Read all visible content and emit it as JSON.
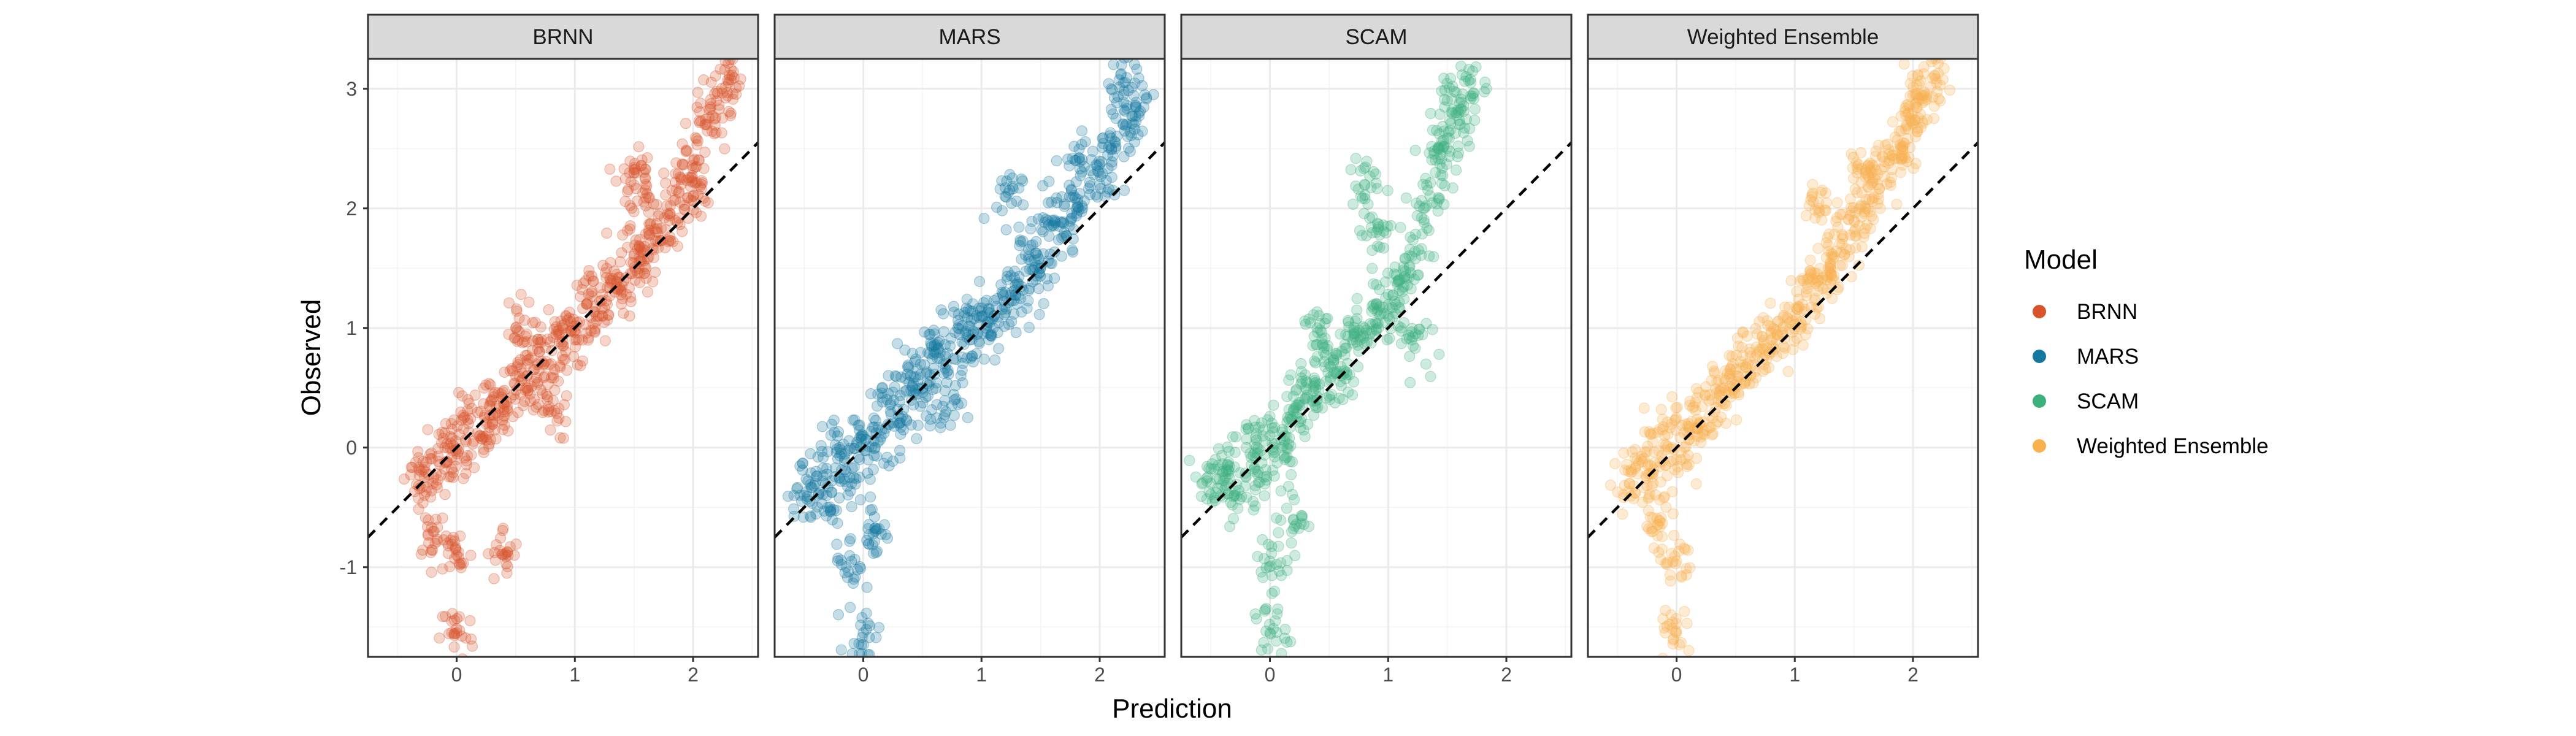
{
  "chart_data": {
    "type": "scatter",
    "facets": [
      "BRNN",
      "MARS",
      "SCAM",
      "Weighted Ensemble"
    ],
    "xlabel": "Prediction",
    "ylabel": "Observed",
    "xlim": [
      -0.75,
      2.55
    ],
    "ylim": [
      -1.75,
      3.25
    ],
    "x_ticks": [
      0,
      1,
      2
    ],
    "y_ticks": [
      -1,
      0,
      1,
      2,
      3
    ],
    "reference_line": {
      "type": "identity",
      "slope": 1,
      "intercept": 0,
      "style": "dashed"
    },
    "legend": {
      "title": "Model",
      "position": "right",
      "entries": [
        "BRNN",
        "MARS",
        "SCAM",
        "Weighted Ensemble"
      ]
    },
    "colors": {
      "BRNN": "#D9532B",
      "MARS": "#1478A0",
      "SCAM": "#3DB07E",
      "Weighted Ensemble": "#F9B04E"
    },
    "point_alpha": 0.25,
    "grid": true,
    "series": [
      {
        "name": "BRNN",
        "points": [
          [
            -0.3,
            -0.2
          ],
          [
            -0.2,
            -0.3
          ],
          [
            -0.1,
            0.0
          ],
          [
            0.0,
            -0.1
          ],
          [
            0.1,
            0.2
          ],
          [
            0.2,
            0.1
          ],
          [
            0.3,
            0.4
          ],
          [
            0.4,
            0.3
          ],
          [
            0.5,
            0.6
          ],
          [
            0.6,
            0.5
          ],
          [
            0.7,
            0.8
          ],
          [
            0.8,
            0.7
          ],
          [
            0.9,
            1.0
          ],
          [
            1.0,
            0.9
          ],
          [
            1.1,
            1.2
          ],
          [
            1.2,
            1.1
          ],
          [
            1.3,
            1.4
          ],
          [
            1.4,
            1.3
          ],
          [
            1.5,
            1.6
          ],
          [
            1.6,
            1.5
          ],
          [
            1.7,
            1.8
          ],
          [
            1.8,
            1.9
          ],
          [
            1.9,
            2.2
          ],
          [
            2.0,
            2.4
          ],
          [
            2.1,
            2.7
          ],
          [
            2.2,
            2.9
          ],
          [
            2.3,
            3.05
          ],
          [
            0.0,
            -1.55
          ],
          [
            0.0,
            -0.9
          ],
          [
            -0.2,
            -0.7
          ],
          [
            0.4,
            -0.9
          ],
          [
            1.5,
            2.3
          ],
          [
            1.6,
            2.2
          ],
          [
            2.0,
            2.1
          ],
          [
            0.5,
            1.0
          ],
          [
            0.8,
            0.3
          ]
        ]
      },
      {
        "name": "MARS",
        "points": [
          [
            -0.5,
            -0.4
          ],
          [
            -0.4,
            -0.2
          ],
          [
            -0.3,
            -0.5
          ],
          [
            -0.2,
            0.0
          ],
          [
            -0.1,
            -0.3
          ],
          [
            0.0,
            0.1
          ],
          [
            0.1,
            0.0
          ],
          [
            0.2,
            0.4
          ],
          [
            0.3,
            0.2
          ],
          [
            0.4,
            0.6
          ],
          [
            0.5,
            0.5
          ],
          [
            0.6,
            0.8
          ],
          [
            0.7,
            0.7
          ],
          [
            0.8,
            1.0
          ],
          [
            0.9,
            0.9
          ],
          [
            1.0,
            1.1
          ],
          [
            1.1,
            1.0
          ],
          [
            1.2,
            1.3
          ],
          [
            1.3,
            1.2
          ],
          [
            1.4,
            1.6
          ],
          [
            1.5,
            1.5
          ],
          [
            1.6,
            1.9
          ],
          [
            1.7,
            1.8
          ],
          [
            1.8,
            2.0
          ],
          [
            2.0,
            2.2
          ],
          [
            2.1,
            2.5
          ],
          [
            2.2,
            2.7
          ],
          [
            2.3,
            2.85
          ],
          [
            0.0,
            -1.55
          ],
          [
            -0.1,
            -0.95
          ],
          [
            0.1,
            -0.7
          ],
          [
            1.2,
            2.1
          ],
          [
            1.8,
            2.4
          ],
          [
            2.2,
            3.05
          ],
          [
            0.7,
            0.3
          ]
        ]
      },
      {
        "name": "SCAM",
        "points": [
          [
            -0.5,
            -0.3
          ],
          [
            -0.4,
            -0.2
          ],
          [
            -0.3,
            -0.4
          ],
          [
            -0.2,
            0.0
          ],
          [
            -0.1,
            -0.2
          ],
          [
            0.0,
            0.1
          ],
          [
            0.1,
            0.0
          ],
          [
            0.2,
            0.3
          ],
          [
            0.3,
            0.5
          ],
          [
            0.4,
            0.4
          ],
          [
            0.5,
            0.7
          ],
          [
            0.6,
            0.6
          ],
          [
            0.7,
            0.9
          ],
          [
            0.8,
            1.0
          ],
          [
            0.9,
            1.2
          ],
          [
            1.0,
            1.1
          ],
          [
            1.1,
            1.4
          ],
          [
            1.2,
            1.6
          ],
          [
            1.3,
            2.0
          ],
          [
            1.4,
            2.3
          ],
          [
            1.5,
            2.5
          ],
          [
            1.6,
            2.7
          ],
          [
            1.7,
            3.05
          ],
          [
            0.0,
            -1.55
          ],
          [
            0.0,
            -0.95
          ],
          [
            0.2,
            -0.6
          ],
          [
            0.8,
            2.2
          ],
          [
            0.9,
            1.8
          ],
          [
            1.2,
            0.9
          ],
          [
            1.5,
            2.9
          ],
          [
            0.4,
            1.0
          ]
        ]
      },
      {
        "name": "Weighted Ensemble",
        "points": [
          [
            -0.4,
            -0.3
          ],
          [
            -0.3,
            -0.1
          ],
          [
            -0.2,
            -0.3
          ],
          [
            -0.1,
            0.1
          ],
          [
            0.0,
            -0.1
          ],
          [
            0.1,
            0.2
          ],
          [
            0.2,
            0.2
          ],
          [
            0.3,
            0.4
          ],
          [
            0.4,
            0.5
          ],
          [
            0.5,
            0.6
          ],
          [
            0.6,
            0.7
          ],
          [
            0.7,
            0.8
          ],
          [
            0.8,
            0.9
          ],
          [
            0.9,
            1.0
          ],
          [
            1.0,
            1.1
          ],
          [
            1.1,
            1.3
          ],
          [
            1.2,
            1.4
          ],
          [
            1.3,
            1.5
          ],
          [
            1.4,
            1.7
          ],
          [
            1.5,
            1.9
          ],
          [
            1.6,
            2.0
          ],
          [
            1.7,
            2.2
          ],
          [
            1.8,
            2.4
          ],
          [
            1.9,
            2.5
          ],
          [
            2.0,
            2.7
          ],
          [
            2.1,
            2.9
          ],
          [
            2.2,
            3.05
          ],
          [
            0.0,
            -1.55
          ],
          [
            0.0,
            -0.95
          ],
          [
            -0.2,
            -0.7
          ],
          [
            1.2,
            2.0
          ],
          [
            1.6,
            2.3
          ],
          [
            2.0,
            2.95
          ]
        ]
      }
    ]
  }
}
